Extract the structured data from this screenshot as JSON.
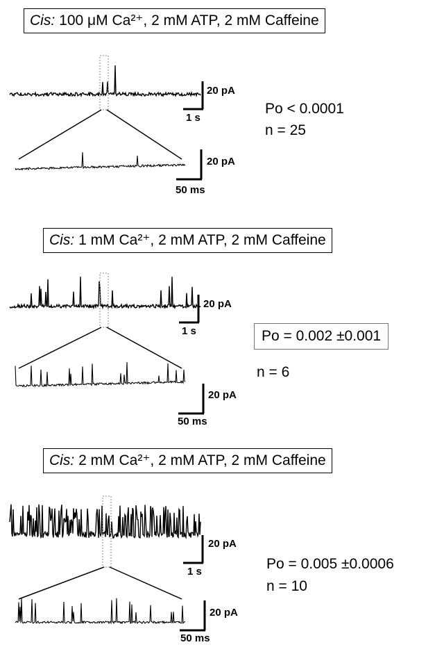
{
  "panels": [
    {
      "condition_prefix": "Cis:",
      "condition_text": "100 μM Ca²⁺, 2 mM ATP, 2 mM Caffeine",
      "time_scale_long": "1 s",
      "time_scale_short": "50 ms",
      "current_scale_long": "20 pA",
      "current_scale_short": "20 pA",
      "po": "Po < 0.0001",
      "n": "n = 25",
      "activity": "very low"
    },
    {
      "condition_prefix": "Cis:",
      "condition_text": "1 mM Ca²⁺, 2 mM ATP, 2 mM Caffeine",
      "time_scale_long": "1 s",
      "time_scale_short": "50 ms",
      "current_scale_long": "20 pA",
      "current_scale_short": "20 pA",
      "po": "Po = 0.002 ±0.001",
      "n": "n = 6",
      "activity": "low"
    },
    {
      "condition_prefix": "Cis:",
      "condition_text": "2 mM Ca²⁺, 2 mM ATP, 2 mM Caffeine",
      "time_scale_long": "1 s",
      "time_scale_short": "50 ms",
      "current_scale_long": "20 pA",
      "current_scale_short": "20 pA",
      "po": "Po = 0.005 ±0.0006",
      "n": "n = 10",
      "activity": "high"
    }
  ]
}
